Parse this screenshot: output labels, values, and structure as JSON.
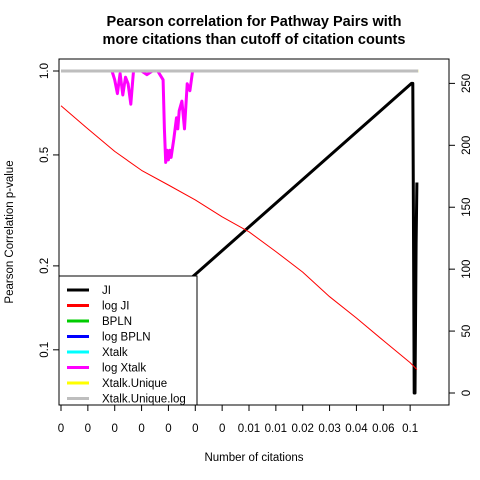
{
  "chart_data": {
    "type": "line",
    "title": "Pearson correlation for Pathway Pairs with\nmore citations than cutoff of citation counts",
    "xlabel": "Number of citations",
    "ylabel": "Pearson Correlation p-value",
    "x_tick_labels": [
      "0",
      "0",
      "0",
      "0",
      "0",
      "0",
      "0",
      "0.01",
      "0.01",
      "0.02",
      "0.03",
      "0.04",
      "0.06",
      "0.1"
    ],
    "y_left": {
      "scale": "log",
      "ylim": [
        0.07,
        1.0
      ],
      "ticks": [
        0.1,
        0.2,
        0.5,
        1.0
      ],
      "tick_labels": [
        "0.1",
        "0.2",
        "0.5",
        "1.0"
      ]
    },
    "y_right": {
      "scale": "linear",
      "ylim": [
        0,
        260
      ],
      "ticks": [
        0,
        50,
        100,
        150,
        200,
        250
      ],
      "tick_labels": [
        "0",
        "50",
        "100",
        "150",
        "200",
        "250"
      ]
    },
    "x_index_range": [
      0,
      14
    ],
    "grid": false,
    "legend_position": "bottom-left",
    "series": [
      {
        "name": "JI",
        "color": "#000000",
        "width": 3,
        "axis": "right",
        "x": [
          0,
          13.05,
          13.1,
          13.12,
          13.15,
          13.18,
          13.22,
          13.25
        ],
        "y": [
          0,
          250,
          250,
          150,
          0,
          0,
          120,
          170
        ]
      },
      {
        "name": "log JI",
        "color": "#ff0000",
        "width": 1,
        "axis": "left",
        "x": [
          0,
          1,
          2,
          3,
          4,
          5,
          6,
          7,
          8,
          9,
          10,
          11,
          12,
          13,
          13.25
        ],
        "y": [
          0.75,
          0.62,
          0.515,
          0.44,
          0.39,
          0.345,
          0.3,
          0.265,
          0.225,
          0.19,
          0.155,
          0.13,
          0.108,
          0.09,
          0.085
        ]
      },
      {
        "name": "BPLN",
        "color": "#00cc00",
        "width": 3,
        "axis": "left",
        "x": [],
        "y": []
      },
      {
        "name": "log BPLN",
        "color": "#0000ff",
        "width": 3,
        "axis": "left",
        "x": [],
        "y": []
      },
      {
        "name": "Xtalk",
        "color": "#00ffff",
        "width": 3,
        "axis": "left",
        "x": [],
        "y": []
      },
      {
        "name": "log Xtalk",
        "color": "#ff00ff",
        "width": 3,
        "axis": "left",
        "x": [
          1.9,
          2.0,
          2.1,
          2.2,
          2.3,
          2.4,
          2.5,
          2.6,
          2.7,
          3.0,
          3.2,
          3.4,
          3.6,
          3.8,
          3.85,
          3.9,
          3.95,
          4.0,
          4.05,
          4.1,
          4.2,
          4.3,
          4.35,
          4.4,
          4.5,
          4.6,
          4.7,
          4.8,
          4.9
        ],
        "y": [
          1.0,
          0.93,
          0.83,
          0.98,
          0.82,
          0.95,
          0.9,
          0.76,
          1.0,
          1.0,
          0.97,
          1.0,
          1.0,
          0.93,
          0.62,
          0.47,
          0.52,
          0.48,
          0.52,
          0.49,
          0.57,
          0.68,
          0.62,
          0.72,
          0.78,
          0.62,
          0.9,
          0.85,
          1.0
        ]
      },
      {
        "name": "Xtalk.Unique",
        "color": "#ffff00",
        "width": 3,
        "axis": "left",
        "x": [
          0,
          13.3
        ],
        "y": [
          1.0,
          1.0
        ]
      },
      {
        "name": "Xtalk.Unique.log",
        "color": "#bebebe",
        "width": 3,
        "axis": "left",
        "x": [
          0,
          13.3
        ],
        "y": [
          1.0,
          1.0
        ]
      }
    ]
  }
}
